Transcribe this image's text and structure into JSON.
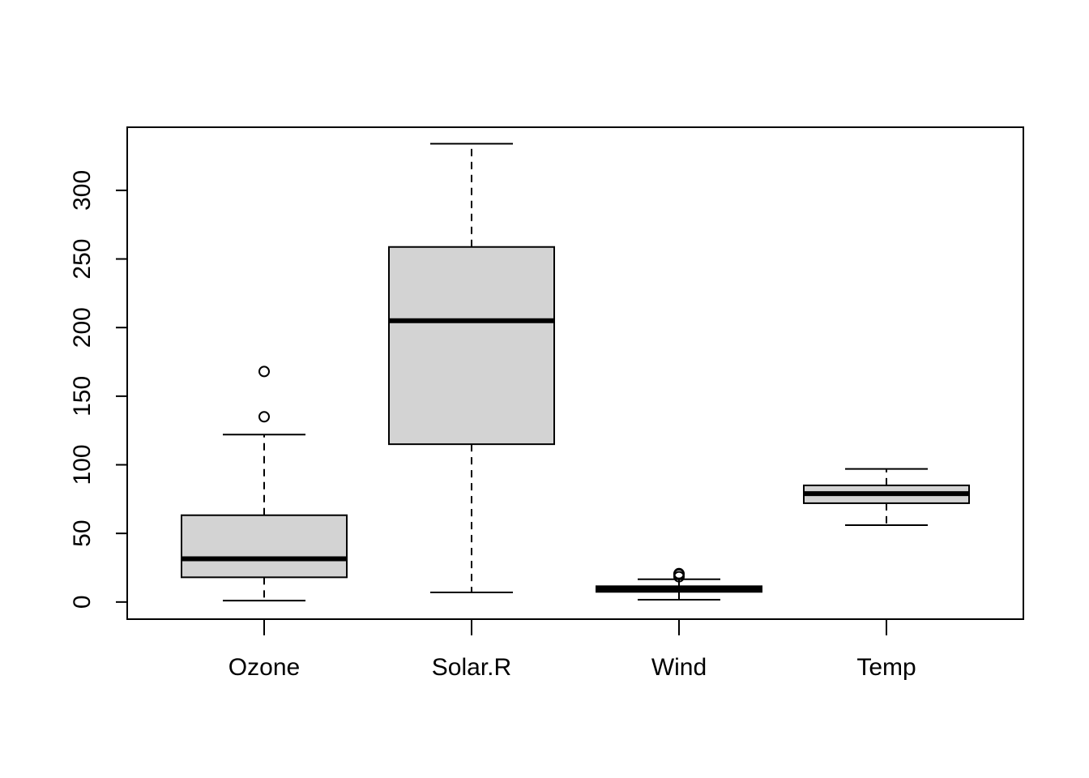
{
  "chart_data": {
    "type": "boxplot",
    "title": "",
    "xlabel": "",
    "ylabel": "",
    "ylim": [
      -12.5,
      346
    ],
    "y_ticks": [
      0,
      50,
      100,
      150,
      200,
      250,
      300
    ],
    "y_tick_labels": [
      "0",
      "50",
      "100",
      "150",
      "200",
      "250",
      "300"
    ],
    "grid": false,
    "legend": "none",
    "colors": {
      "box_fill": "#d3d3d3",
      "line": "#000000",
      "background": "#ffffff"
    },
    "categories": [
      "Ozone",
      "Solar.R",
      "Wind",
      "Temp"
    ],
    "boxes": [
      {
        "name": "Ozone",
        "whisker_low": 1,
        "q1": 18,
        "median": 31.5,
        "q3": 63.25,
        "whisker_high": 122,
        "outliers": [
          135,
          168
        ]
      },
      {
        "name": "Solar.R",
        "whisker_low": 7,
        "q1": 115,
        "median": 205,
        "q3": 258.75,
        "whisker_high": 334,
        "outliers": []
      },
      {
        "name": "Wind",
        "whisker_low": 1.7,
        "q1": 7.4,
        "median": 9.7,
        "q3": 11.5,
        "whisker_high": 16.6,
        "outliers": [
          18.4,
          20.1,
          20.7
        ]
      },
      {
        "name": "Temp",
        "whisker_low": 56,
        "q1": 72,
        "median": 79,
        "q3": 85,
        "whisker_high": 97,
        "outliers": []
      }
    ]
  }
}
